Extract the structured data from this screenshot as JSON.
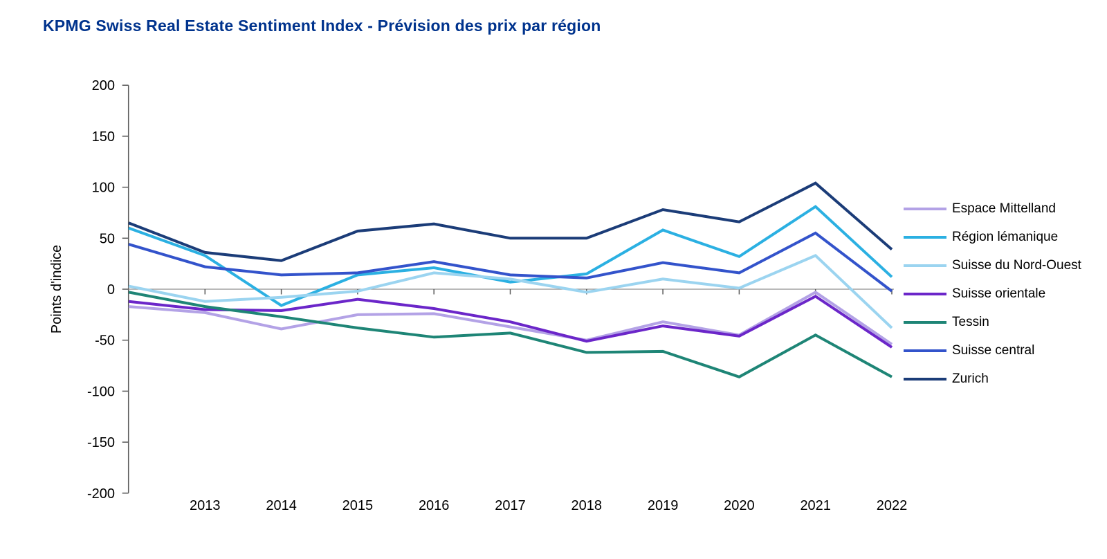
{
  "title": "KPMG Swiss Real Estate Sentiment Index - Prévision des prix par région",
  "title_color": "#00338d",
  "chart_data": {
    "type": "line",
    "title": "KPMG Swiss Real Estate Sentiment Index - Prévision des prix par région",
    "ylabel": "Points d'indice",
    "xlabel": "",
    "ylim": [
      -200,
      200
    ],
    "y_ticks": [
      200,
      150,
      100,
      50,
      0,
      -50,
      -100,
      -150,
      -200
    ],
    "categories": [
      "",
      "2013",
      "2014",
      "2015",
      "2016",
      "2017",
      "2018",
      "2019",
      "2020",
      "2021",
      "2022"
    ],
    "grid": "horizontal zero line only",
    "legend_position": "right",
    "axis_color": "#595959",
    "zero_line_color": "#8f8f8f",
    "series": [
      {
        "name": "Espace Mittelland",
        "color": "#b3a2e6",
        "values": [
          -17,
          -23,
          -39,
          -25,
          -24,
          -37,
          -50,
          -32,
          -45,
          -3,
          -54
        ]
      },
      {
        "name": "Région lémanique",
        "color": "#2bb0e2",
        "values": [
          60,
          33,
          -16,
          14,
          21,
          7,
          15,
          58,
          32,
          81,
          12
        ]
      },
      {
        "name": "Suisse du Nord-Ouest",
        "color": "#9bd4f0",
        "values": [
          3,
          -12,
          -8,
          -2,
          16,
          10,
          -3,
          10,
          1,
          33,
          -38
        ]
      },
      {
        "name": "Suisse orientale",
        "color": "#6b26c9",
        "values": [
          -12,
          -20,
          -21,
          -10,
          -19,
          -32,
          -51,
          -36,
          -46,
          -7,
          -57
        ]
      },
      {
        "name": "Tessin",
        "color": "#1e8576",
        "values": [
          -3,
          -17,
          -27,
          -38,
          -47,
          -43,
          -62,
          -61,
          -86,
          -45,
          -86
        ]
      },
      {
        "name": "Suisse central",
        "color": "#3353cb",
        "values": [
          44,
          22,
          14,
          16,
          27,
          14,
          11,
          26,
          16,
          55,
          -2
        ]
      },
      {
        "name": "Zurich",
        "color": "#1b3c78",
        "values": [
          65,
          36,
          28,
          57,
          64,
          50,
          50,
          78,
          66,
          104,
          39
        ]
      }
    ]
  }
}
